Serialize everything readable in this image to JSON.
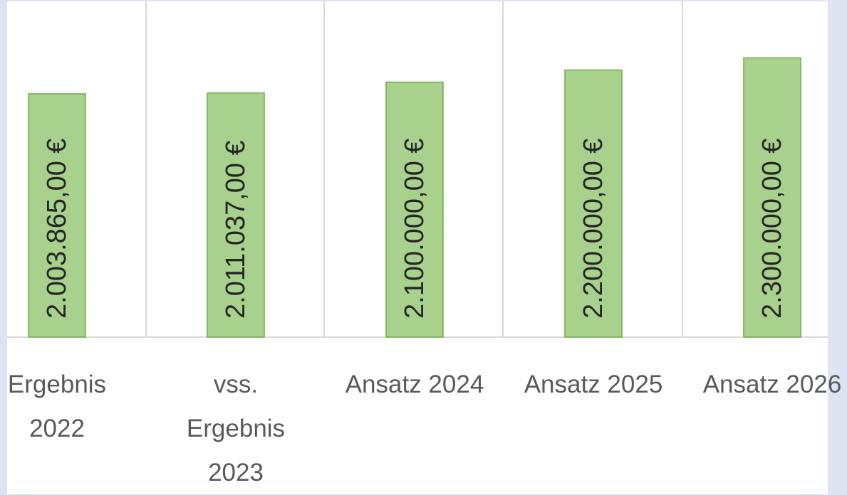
{
  "chart_data": {
    "type": "bar",
    "categories": [
      "Ergebnis 2022",
      "vss. Ergebnis 2023",
      "Ansatz 2024",
      "Ansatz 2025",
      "Ansatz 2026"
    ],
    "values": [
      2003865,
      2011037,
      2100000,
      2200000,
      2300000
    ],
    "value_labels": [
      "2.003.865,00 €",
      "2.011.037,00 €",
      "2.100.000,00 €",
      "2.200.000,00 €",
      "2.300.000,00 €"
    ],
    "color": "#a9d18e",
    "ylim": [
      0,
      2800000
    ]
  }
}
